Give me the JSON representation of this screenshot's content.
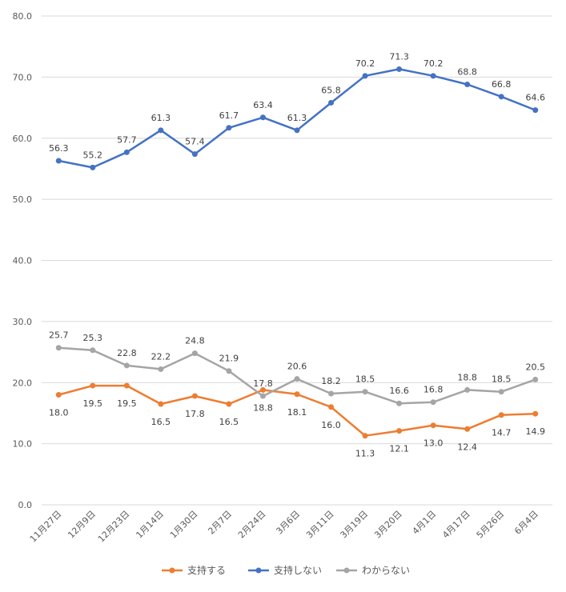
{
  "chart_data": {
    "type": "line",
    "title": "",
    "xlabel": "",
    "ylabel": "",
    "ylim": [
      0,
      80
    ],
    "yticks": [
      "0.0",
      "10.0",
      "20.0",
      "30.0",
      "40.0",
      "50.0",
      "60.0",
      "70.0",
      "80.0"
    ],
    "grid": true,
    "legend_position": "bottom",
    "categories": [
      "11月27日",
      "12月9日",
      "12月23日",
      "1月14日",
      "1月30日",
      "2月7日",
      "2月24日",
      "3月6日",
      "3月11日",
      "3月19日",
      "3月20日",
      "4月1日",
      "4月17日",
      "5月26日",
      "6月4日"
    ],
    "series": [
      {
        "name": "支持する",
        "color": "#ED7D31",
        "label_position": "below",
        "values": [
          18.0,
          19.5,
          19.5,
          16.5,
          17.8,
          16.5,
          18.8,
          18.1,
          16.0,
          11.3,
          12.1,
          13.0,
          12.4,
          14.7,
          14.9
        ]
      },
      {
        "name": "支持しない",
        "color": "#4472C4",
        "label_position": "above",
        "values": [
          56.3,
          55.2,
          57.7,
          61.3,
          57.4,
          61.7,
          63.4,
          61.3,
          65.8,
          70.2,
          71.3,
          70.2,
          68.8,
          66.8,
          64.6
        ]
      },
      {
        "name": "わからない",
        "color": "#A5A5A5",
        "label_position": "above",
        "values": [
          25.7,
          25.3,
          22.8,
          22.2,
          24.8,
          21.9,
          17.8,
          20.6,
          18.2,
          18.5,
          16.6,
          16.8,
          18.8,
          18.5,
          20.5
        ]
      }
    ]
  }
}
